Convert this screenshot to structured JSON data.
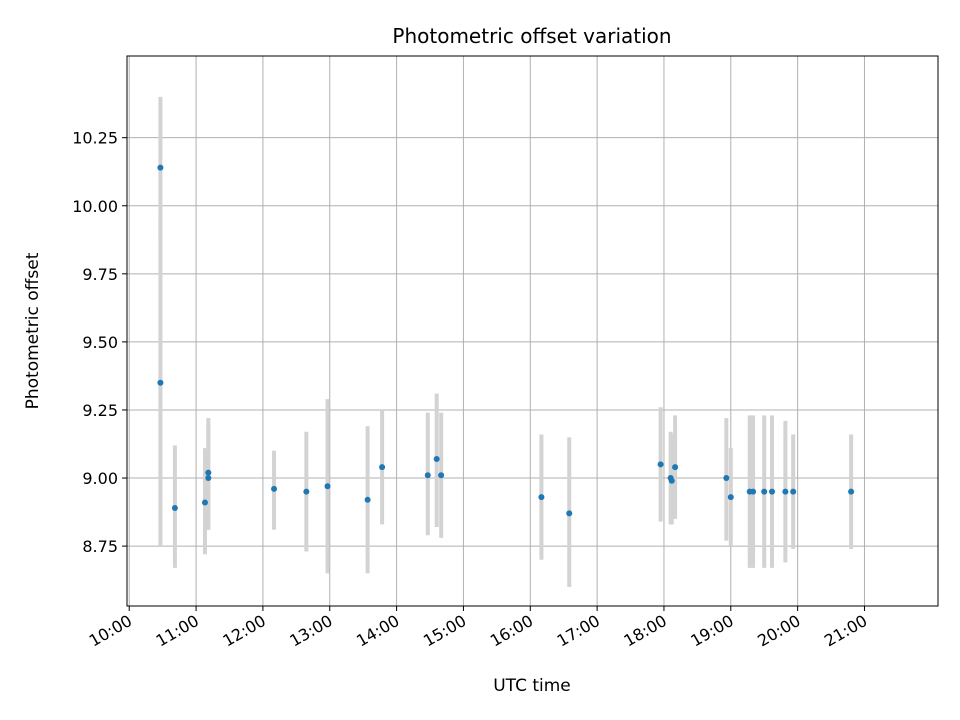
{
  "chart_data": {
    "type": "scatter",
    "title": "Photometric offset variation",
    "xlabel": "UTC time",
    "ylabel": "Photometric offset",
    "x_format": "HH:MM",
    "xlim": [
      "09:58",
      "22:06"
    ],
    "ylim": [
      8.53,
      10.55
    ],
    "x_ticks": [
      "10:00",
      "11:00",
      "12:00",
      "13:00",
      "14:00",
      "15:00",
      "16:00",
      "17:00",
      "18:00",
      "19:00",
      "20:00",
      "21:00"
    ],
    "y_ticks": [
      "8.75",
      "9.00",
      "9.25",
      "9.50",
      "9.75",
      "10.00",
      "10.25"
    ],
    "grid": true,
    "colors": {
      "point": "#1f77b4",
      "errorbar": "#d3d3d3",
      "grid": "#b0b0b0"
    },
    "points": [
      {
        "x": "10:28",
        "y": 10.14,
        "ylow": 9.88,
        "yhigh": 10.4
      },
      {
        "x": "10:28",
        "y": 9.35,
        "ylow": 8.75,
        "yhigh": 9.96
      },
      {
        "x": "10:41",
        "y": 8.89,
        "ylow": 8.67,
        "yhigh": 9.12
      },
      {
        "x": "11:08",
        "y": 8.91,
        "ylow": 8.72,
        "yhigh": 9.11
      },
      {
        "x": "11:11",
        "y": 9.02,
        "ylow": 8.81,
        "yhigh": 9.22
      },
      {
        "x": "11:11",
        "y": 9.0,
        "ylow": 8.81,
        "yhigh": 9.2
      },
      {
        "x": "12:10",
        "y": 8.96,
        "ylow": 8.81,
        "yhigh": 9.1
      },
      {
        "x": "12:39",
        "y": 8.95,
        "ylow": 8.73,
        "yhigh": 9.17
      },
      {
        "x": "12:58",
        "y": 8.97,
        "ylow": 8.65,
        "yhigh": 9.29
      },
      {
        "x": "13:34",
        "y": 8.92,
        "ylow": 8.65,
        "yhigh": 9.19
      },
      {
        "x": "13:47",
        "y": 9.04,
        "ylow": 8.83,
        "yhigh": 9.25
      },
      {
        "x": "14:28",
        "y": 9.01,
        "ylow": 8.79,
        "yhigh": 9.24
      },
      {
        "x": "14:36",
        "y": 9.07,
        "ylow": 8.82,
        "yhigh": 9.31
      },
      {
        "x": "14:40",
        "y": 9.01,
        "ylow": 8.78,
        "yhigh": 9.24
      },
      {
        "x": "16:10",
        "y": 8.93,
        "ylow": 8.7,
        "yhigh": 9.16
      },
      {
        "x": "16:35",
        "y": 8.87,
        "ylow": 8.6,
        "yhigh": 9.15
      },
      {
        "x": "17:57",
        "y": 9.05,
        "ylow": 8.84,
        "yhigh": 9.26
      },
      {
        "x": "18:06",
        "y": 9.0,
        "ylow": 8.83,
        "yhigh": 9.17
      },
      {
        "x": "18:07",
        "y": 8.99,
        "ylow": 8.83,
        "yhigh": 9.16
      },
      {
        "x": "18:10",
        "y": 9.04,
        "ylow": 8.85,
        "yhigh": 9.23
      },
      {
        "x": "18:56",
        "y": 9.0,
        "ylow": 8.77,
        "yhigh": 9.22
      },
      {
        "x": "19:00",
        "y": 8.93,
        "ylow": 8.75,
        "yhigh": 9.11
      },
      {
        "x": "19:17",
        "y": 8.95,
        "ylow": 8.67,
        "yhigh": 9.23
      },
      {
        "x": "19:20",
        "y": 8.95,
        "ylow": 8.67,
        "yhigh": 9.23
      },
      {
        "x": "19:30",
        "y": 8.95,
        "ylow": 8.67,
        "yhigh": 9.23
      },
      {
        "x": "19:37",
        "y": 8.95,
        "ylow": 8.67,
        "yhigh": 9.23
      },
      {
        "x": "19:49",
        "y": 8.95,
        "ylow": 8.69,
        "yhigh": 9.21
      },
      {
        "x": "19:56",
        "y": 8.95,
        "ylow": 8.74,
        "yhigh": 9.16
      },
      {
        "x": "20:48",
        "y": 8.95,
        "ylow": 8.74,
        "yhigh": 9.16
      }
    ]
  }
}
